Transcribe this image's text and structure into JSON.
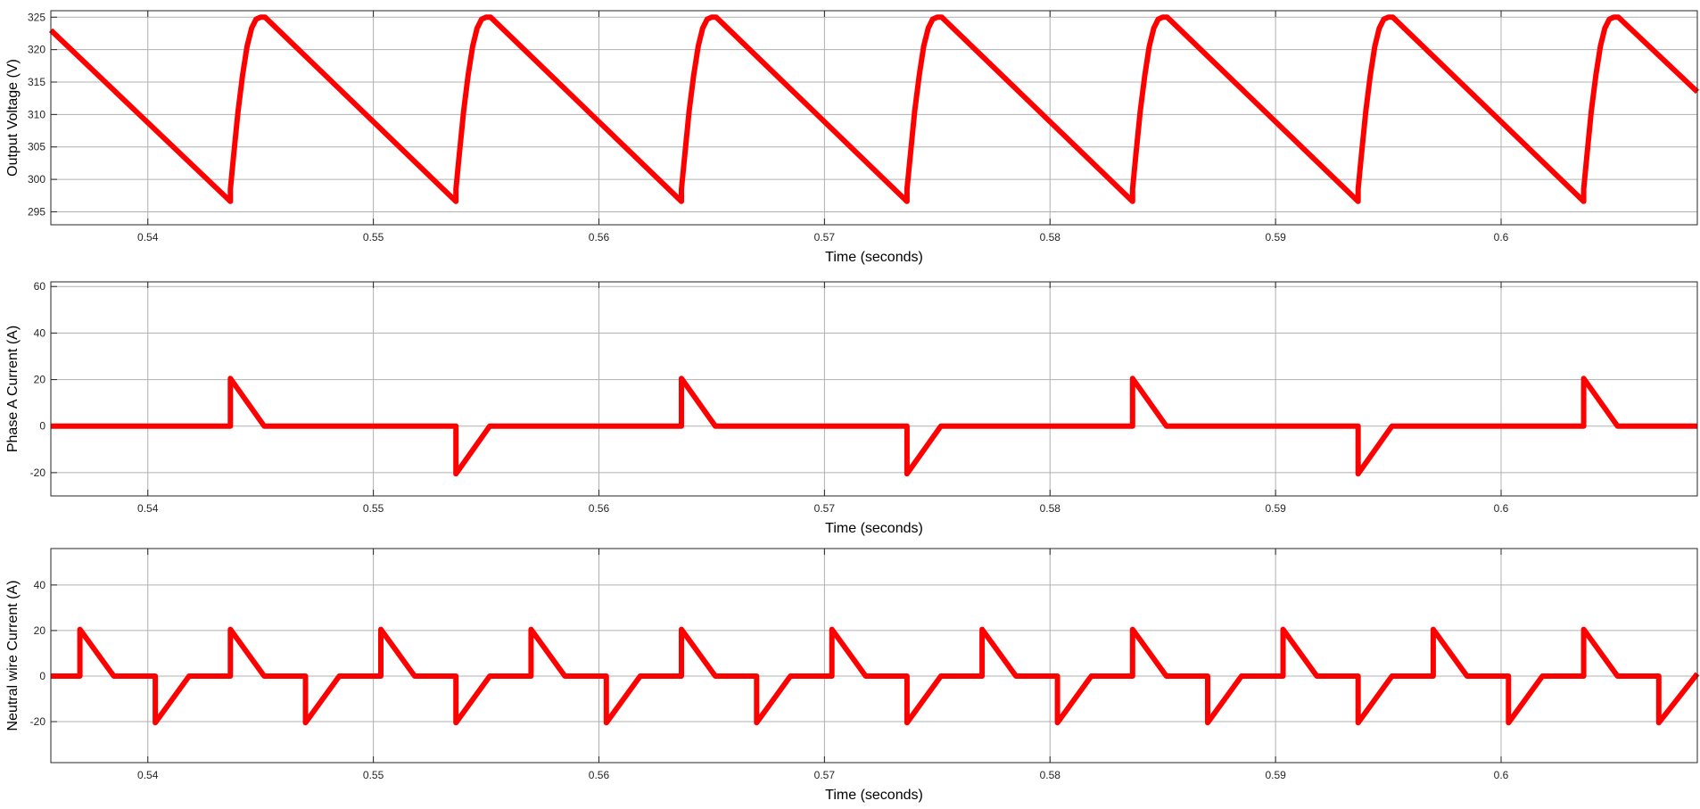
{
  "colors": {
    "line": "#ff0000",
    "grid": "#b0b0b0",
    "axis": "#262626",
    "background": "#ffffff"
  },
  "chart_data": [
    {
      "type": "line",
      "xlabel": "Time (seconds)",
      "ylabel": "Output Voltage (V)",
      "xlim": [
        0.5357,
        0.6087
      ],
      "ylim": [
        293,
        326
      ],
      "xticks": [
        0.54,
        0.55,
        0.56,
        0.57,
        0.58,
        0.59,
        0.6
      ],
      "xtick_labels": [
        "0.54",
        "0.55",
        "0.56",
        "0.57",
        "0.58",
        "0.59",
        "0.6"
      ],
      "yticks": [
        295,
        300,
        305,
        310,
        315,
        320,
        325
      ],
      "ytick_labels": [
        "295",
        "300",
        "305",
        "310",
        "315",
        "320",
        "325"
      ],
      "grid": true,
      "series": [
        {
          "x": [
            0.5357,
            0.54366,
            0.54366,
            0.5438,
            0.544,
            0.5442,
            0.5444,
            0.5446,
            0.5448,
            0.545,
            0.5452,
            0.55366,
            0.55366,
            0.5538,
            0.554,
            0.5542,
            0.5544,
            0.5546,
            0.5548,
            0.555,
            0.5552,
            0.56366,
            0.56366,
            0.5638,
            0.564,
            0.5642,
            0.5644,
            0.5646,
            0.5648,
            0.565,
            0.5652,
            0.57366,
            0.57366,
            0.5738,
            0.574,
            0.5742,
            0.5744,
            0.5746,
            0.5748,
            0.575,
            0.5752,
            0.58366,
            0.58366,
            0.5838,
            0.584,
            0.5842,
            0.5844,
            0.5846,
            0.5848,
            0.585,
            0.5852,
            0.59366,
            0.59366,
            0.5938,
            0.594,
            0.5942,
            0.5944,
            0.5946,
            0.5948,
            0.595,
            0.5952,
            0.60366,
            0.60366,
            0.6038,
            0.604,
            0.6042,
            0.6044,
            0.6046,
            0.6048,
            0.605,
            0.6052,
            0.6087
          ],
          "y": [
            323,
            296.6,
            298.5,
            303.5,
            310.5,
            316.0,
            320.5,
            323.3,
            324.7,
            325.0,
            325.0,
            296.6,
            298.5,
            303.5,
            310.5,
            316.0,
            320.5,
            323.3,
            324.7,
            325.0,
            325.0,
            296.6,
            298.5,
            303.5,
            310.5,
            316.0,
            320.5,
            323.3,
            324.7,
            325.0,
            325.0,
            296.6,
            298.5,
            303.5,
            310.5,
            316.0,
            320.5,
            323.3,
            324.7,
            325.0,
            325.0,
            296.6,
            298.5,
            303.5,
            310.5,
            316.0,
            320.5,
            323.3,
            324.7,
            325.0,
            325.0,
            296.6,
            298.5,
            303.5,
            310.5,
            316.0,
            320.5,
            323.3,
            324.7,
            325.0,
            325.0,
            296.6,
            298.5,
            303.5,
            310.5,
            316.0,
            320.5,
            323.3,
            324.7,
            325.0,
            325.0,
            313.5
          ]
        }
      ]
    },
    {
      "type": "line",
      "xlabel": "Time (seconds)",
      "ylabel": "Phase A Current (A)",
      "xlim": [
        0.5357,
        0.6087
      ],
      "ylim": [
        -30,
        62
      ],
      "xticks": [
        0.54,
        0.55,
        0.56,
        0.57,
        0.58,
        0.59,
        0.6
      ],
      "xtick_labels": [
        "0.54",
        "0.55",
        "0.56",
        "0.57",
        "0.58",
        "0.59",
        "0.6"
      ],
      "yticks": [
        -20,
        0,
        20,
        40,
        60
      ],
      "ytick_labels": [
        "-20",
        "0",
        "20",
        "40",
        "60"
      ],
      "grid": true,
      "series": [
        {
          "x": [
            0.5357,
            0.54366,
            0.54366,
            0.54516,
            0.55366,
            0.55366,
            0.55516,
            0.56366,
            0.56366,
            0.56516,
            0.57366,
            0.57366,
            0.57516,
            0.58366,
            0.58366,
            0.58516,
            0.59366,
            0.59366,
            0.59516,
            0.60366,
            0.60366,
            0.60516,
            0.6087
          ],
          "y": [
            0,
            0,
            20.5,
            0,
            0,
            -20.5,
            0,
            0,
            20.5,
            0,
            0,
            -20.5,
            0,
            0,
            20.5,
            0,
            0,
            -20.5,
            0,
            0,
            20.5,
            0,
            0
          ]
        }
      ]
    },
    {
      "type": "line",
      "xlabel": "Time (seconds)",
      "ylabel": "Neutral wire Current (A)",
      "xlim": [
        0.5357,
        0.6087
      ],
      "ylim": [
        -38,
        56
      ],
      "xticks": [
        0.54,
        0.55,
        0.56,
        0.57,
        0.58,
        0.59,
        0.6
      ],
      "xtick_labels": [
        "0.54",
        "0.55",
        "0.56",
        "0.57",
        "0.58",
        "0.59",
        "0.6"
      ],
      "yticks": [
        -20,
        0,
        20,
        40
      ],
      "ytick_labels": [
        "-20",
        "0",
        "20",
        "40"
      ],
      "grid": true,
      "series": [
        {
          "x": [
            0.5357,
            0.53699,
            0.53699,
            0.53849,
            0.54033,
            0.54033,
            0.54183,
            0.54366,
            0.54366,
            0.54516,
            0.54699,
            0.54699,
            0.54849,
            0.55033,
            0.55033,
            0.55183,
            0.55366,
            0.55366,
            0.55516,
            0.55699,
            0.55699,
            0.55849,
            0.56033,
            0.56033,
            0.56183,
            0.56366,
            0.56366,
            0.56516,
            0.56699,
            0.56699,
            0.56849,
            0.57033,
            0.57033,
            0.57183,
            0.57366,
            0.57366,
            0.57516,
            0.57699,
            0.57699,
            0.57849,
            0.58033,
            0.58033,
            0.58183,
            0.58366,
            0.58366,
            0.58516,
            0.58699,
            0.58699,
            0.58849,
            0.59033,
            0.59033,
            0.59183,
            0.59366,
            0.59366,
            0.59516,
            0.59699,
            0.59699,
            0.59849,
            0.60033,
            0.60033,
            0.60183,
            0.60366,
            0.60366,
            0.60516,
            0.60699,
            0.60699,
            0.6087
          ],
          "y": [
            0,
            0,
            20.5,
            0,
            0,
            -20.5,
            0,
            0,
            20.5,
            0,
            0,
            -20.5,
            0,
            0,
            20.5,
            0,
            0,
            -20.5,
            0,
            0,
            20.5,
            0,
            0,
            -20.5,
            0,
            0,
            20.5,
            0,
            0,
            -20.5,
            0,
            0,
            20.5,
            0,
            0,
            -20.5,
            0,
            0,
            20.5,
            0,
            0,
            -20.5,
            0,
            0,
            20.5,
            0,
            0,
            -20.5,
            0,
            0,
            20.5,
            0,
            0,
            -20.5,
            0,
            0,
            20.5,
            0,
            0,
            -20.5,
            0,
            0,
            20.5,
            0,
            0,
            -20.5,
            1
          ]
        }
      ]
    }
  ]
}
